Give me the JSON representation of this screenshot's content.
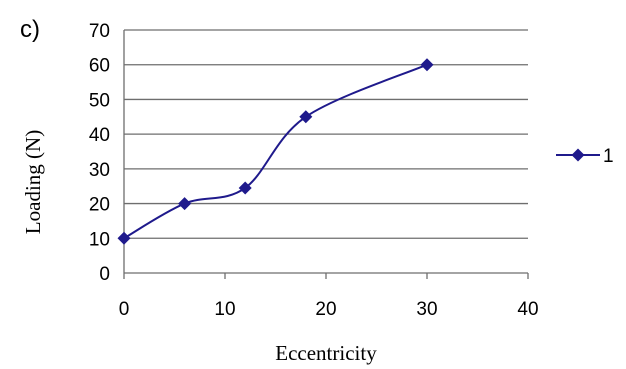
{
  "panel_label": "c)",
  "chart_data": {
    "type": "line",
    "xlabel": "Eccentricity",
    "ylabel": "Loading (N)",
    "xlim": [
      0,
      40
    ],
    "ylim": [
      0,
      70
    ],
    "x_ticks": [
      0,
      10,
      20,
      30,
      40
    ],
    "y_ticks": [
      0,
      10,
      20,
      30,
      40,
      50,
      60,
      70
    ],
    "grid": "horizontal",
    "legend_position": "right",
    "series": [
      {
        "name": "1",
        "color": "#1f1a8c",
        "marker": "diamond",
        "x": [
          0,
          6,
          12,
          18,
          30
        ],
        "y": [
          10,
          20,
          24.5,
          45,
          60
        ]
      }
    ]
  }
}
